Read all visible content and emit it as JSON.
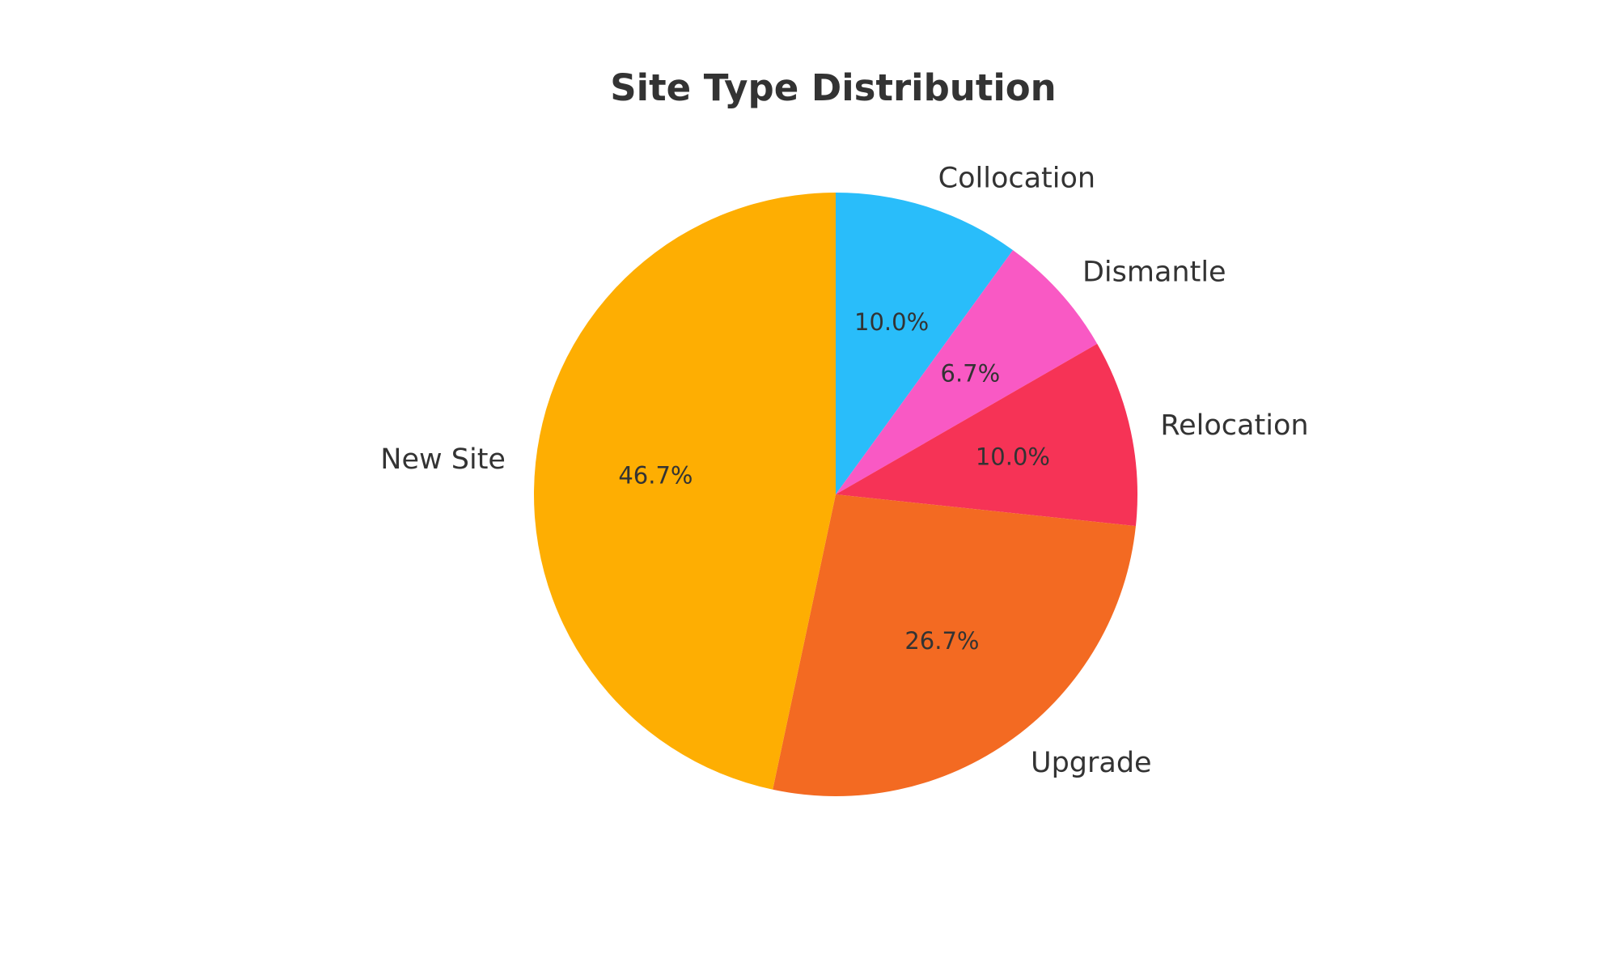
{
  "chart_data": {
    "type": "pie",
    "title": "Site Type Distribution",
    "categories": [
      "Collocation",
      "Dismantle",
      "Relocation",
      "Upgrade",
      "New Site"
    ],
    "values": [
      10.0,
      6.7,
      10.0,
      26.7,
      46.7
    ],
    "value_labels": [
      "10.0%",
      "6.7%",
      "10.0%",
      "26.7%",
      "46.7%"
    ],
    "colors": [
      "#29BDFA",
      "#F959C4",
      "#F63356",
      "#F36A22",
      "#FEAE02"
    ],
    "start_angle": "top",
    "direction": "clockwise",
    "legend": "none"
  }
}
